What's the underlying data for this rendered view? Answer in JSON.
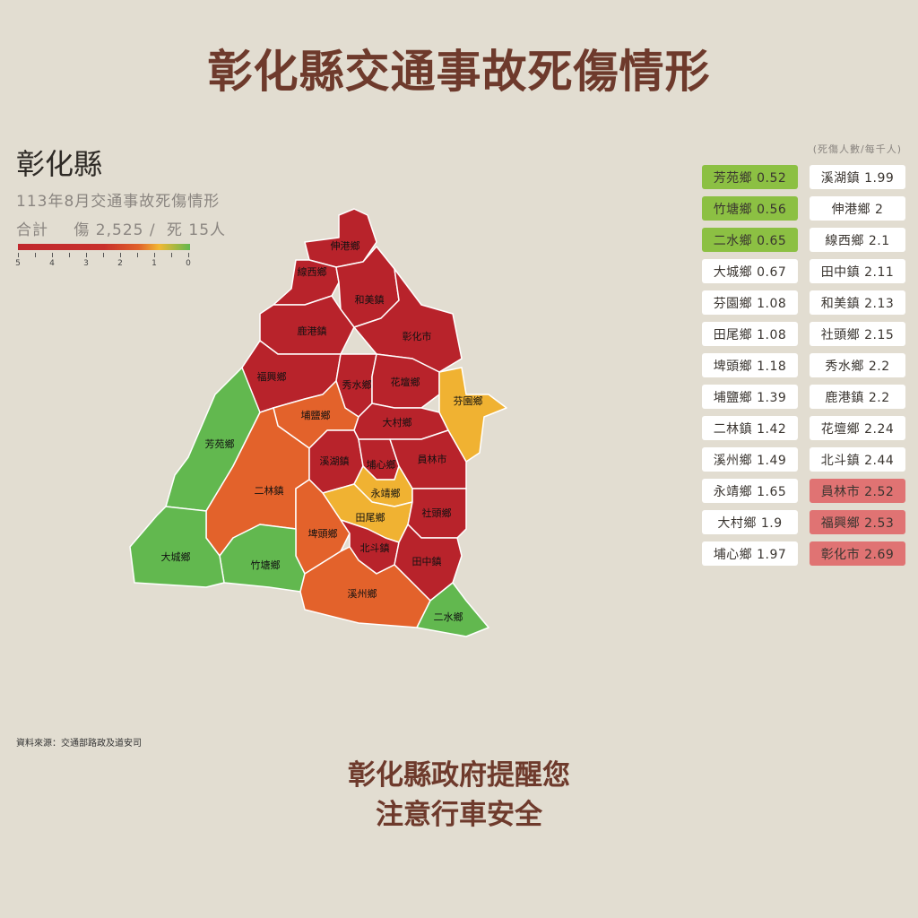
{
  "title": "彰化縣交通事故死傷情形",
  "county": "彰化縣",
  "subtitle": "113年8月交通事故死傷情形",
  "total": {
    "label": "合計",
    "injured": "傷 2,525 /",
    "dead": "死 15人"
  },
  "legend": {
    "ticks": [
      "5",
      "4",
      "3",
      "2",
      "1",
      "0"
    ],
    "colors": [
      "#c0272d",
      "#e0602a",
      "#f2b833",
      "#62b84f"
    ]
  },
  "unit": "(死傷人數/每千人)",
  "colors": {
    "red": "#b8232b",
    "orange": "#e3622b",
    "yellow": "#f0b232",
    "green": "#62b84f"
  },
  "list": [
    {
      "text": "芳苑鄉 0.52",
      "level": "green"
    },
    {
      "text": "溪湖鎮 1.99",
      "level": "normal"
    },
    {
      "text": "竹塘鄉 0.56",
      "level": "green"
    },
    {
      "text": "伸港鄉 2",
      "level": "normal"
    },
    {
      "text": "二水鄉 0.65",
      "level": "green"
    },
    {
      "text": "線西鄉 2.1",
      "level": "normal"
    },
    {
      "text": "大城鄉 0.67",
      "level": "normal"
    },
    {
      "text": "田中鎮 2.11",
      "level": "normal"
    },
    {
      "text": "芬園鄉 1.08",
      "level": "normal"
    },
    {
      "text": "和美鎮 2.13",
      "level": "normal"
    },
    {
      "text": "田尾鄉 1.08",
      "level": "normal"
    },
    {
      "text": "社頭鄉 2.15",
      "level": "normal"
    },
    {
      "text": "埤頭鄉 1.18",
      "level": "normal"
    },
    {
      "text": "秀水鄉 2.2",
      "level": "normal"
    },
    {
      "text": "埔鹽鄉 1.39",
      "level": "normal"
    },
    {
      "text": "鹿港鎮 2.2",
      "level": "normal"
    },
    {
      "text": "二林鎮 1.42",
      "level": "normal"
    },
    {
      "text": "花壇鄉 2.24",
      "level": "normal"
    },
    {
      "text": "溪州鄉 1.49",
      "level": "normal"
    },
    {
      "text": "北斗鎮 2.44",
      "level": "normal"
    },
    {
      "text": "永靖鄉 1.65",
      "level": "normal"
    },
    {
      "text": "員林市 2.52",
      "level": "red"
    },
    {
      "text": "大村鄉 1.9",
      "level": "normal"
    },
    {
      "text": "福興鄉 2.53",
      "level": "red"
    },
    {
      "text": "埔心鄉 1.97",
      "level": "normal"
    },
    {
      "text": "彰化市 2.69",
      "level": "red"
    }
  ],
  "map": [
    {
      "name": "伸港鄉",
      "color": "red"
    },
    {
      "name": "線西鄉",
      "color": "red"
    },
    {
      "name": "和美鎮",
      "color": "red"
    },
    {
      "name": "彰化市",
      "color": "red"
    },
    {
      "name": "鹿港鎮",
      "color": "red"
    },
    {
      "name": "福興鄉",
      "color": "red"
    },
    {
      "name": "秀水鄉",
      "color": "red"
    },
    {
      "name": "花壇鄉",
      "color": "red"
    },
    {
      "name": "芬園鄉",
      "color": "yellow"
    },
    {
      "name": "埔鹽鄉",
      "color": "orange"
    },
    {
      "name": "大村鄉",
      "color": "red"
    },
    {
      "name": "芳苑鄉",
      "color": "green"
    },
    {
      "name": "二林鎮",
      "color": "orange"
    },
    {
      "name": "溪湖鎮",
      "color": "red"
    },
    {
      "name": "埔心鄉",
      "color": "red"
    },
    {
      "name": "員林市",
      "color": "red"
    },
    {
      "name": "永靖鄉",
      "color": "yellow"
    },
    {
      "name": "田尾鄉",
      "color": "yellow"
    },
    {
      "name": "社頭鄉",
      "color": "red"
    },
    {
      "name": "埤頭鄉",
      "color": "orange"
    },
    {
      "name": "竹塘鄉",
      "color": "green"
    },
    {
      "name": "大城鄉",
      "color": "green"
    },
    {
      "name": "北斗鎮",
      "color": "red"
    },
    {
      "name": "田中鎮",
      "color": "red"
    },
    {
      "name": "溪州鄉",
      "color": "orange"
    },
    {
      "name": "二水鄉",
      "color": "green"
    }
  ],
  "source": "資料來源：交通部路政及道安司",
  "footer": [
    "彰化縣政府提醒您",
    "注意行車安全"
  ]
}
